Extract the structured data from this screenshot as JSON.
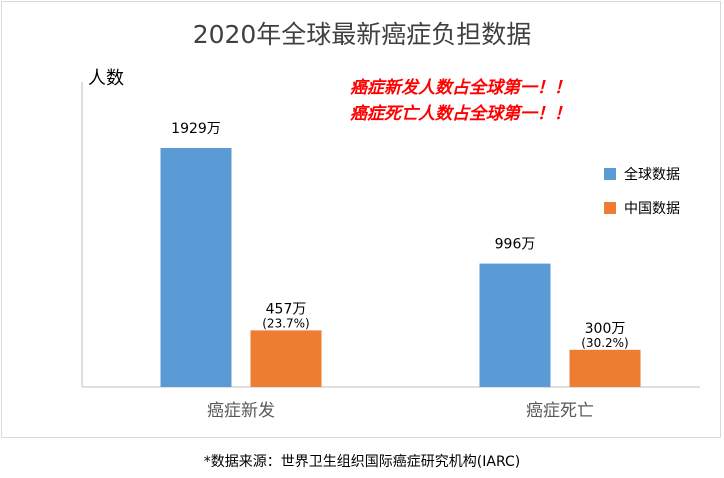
{
  "chart_data": {
    "type": "bar",
    "title": "2020年全球最新癌症负担数据",
    "ylabel": "人数",
    "categories": [
      "癌症新发",
      "癌症死亡"
    ],
    "series": [
      {
        "name": "全球数据",
        "color": "#5b9bd5",
        "values": [
          1929,
          996
        ],
        "labels": [
          "1929万",
          "996万"
        ],
        "sublabels": [
          "",
          ""
        ]
      },
      {
        "name": "中国数据",
        "color": "#ed7d31",
        "values": [
          457,
          300
        ],
        "labels": [
          "457万",
          "300万"
        ],
        "sublabels": [
          "(23.7%)",
          "(30.2%)"
        ]
      }
    ],
    "ylim": [
      0,
      2000
    ],
    "legend_position": "right",
    "annotations": [
      "癌症新发人数占全球第一！！",
      "癌症死亡人数占全球第一！！"
    ]
  },
  "footnote": "*数据来源：世界卫生组织国际癌症研究机构(IARC)"
}
